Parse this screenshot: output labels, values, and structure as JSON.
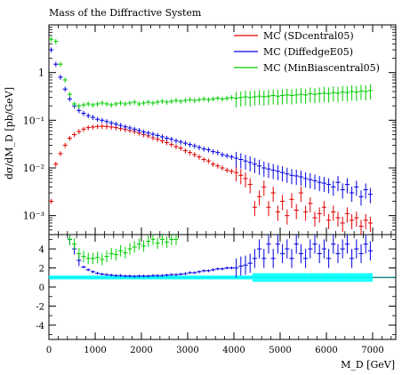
{
  "chart_data": [
    {
      "type": "scatter",
      "title": "Mass of the Diffractive System",
      "ylabel": "dσ/dM_D [pb/GeV]",
      "yscale": "log",
      "ylim": [
        0.0004,
        10
      ],
      "xlim": [
        0,
        7500
      ],
      "legend_position": "top-right",
      "y_ticks": [
        {
          "v": 0.001,
          "label": "10⁻³"
        },
        {
          "v": 0.01,
          "label": "10⁻²"
        },
        {
          "v": 0.1,
          "label": "10⁻¹"
        },
        {
          "v": 1,
          "label": "1"
        }
      ],
      "series": [
        {
          "name": "MC (SDcentral05)",
          "color": "#e00000",
          "x": [
            50,
            150,
            250,
            350,
            450,
            550,
            650,
            750,
            850,
            950,
            1050,
            1150,
            1250,
            1350,
            1450,
            1550,
            1650,
            1750,
            1850,
            1950,
            2050,
            2150,
            2250,
            2350,
            2450,
            2550,
            2650,
            2750,
            2850,
            2950,
            3050,
            3150,
            3250,
            3350,
            3450,
            3550,
            3650,
            3750,
            3850,
            3950,
            4050,
            4150,
            4250,
            4350,
            4450,
            4550,
            4650,
            4750,
            4850,
            4950,
            5050,
            5150,
            5250,
            5350,
            5450,
            5550,
            5650,
            5750,
            5850,
            5950,
            6050,
            6150,
            6250,
            6350,
            6450,
            6550,
            6650,
            6750,
            6850,
            6950
          ],
          "y": [
            0.002,
            0.012,
            0.02,
            0.03,
            0.042,
            0.05,
            0.058,
            0.065,
            0.07,
            0.072,
            0.074,
            0.075,
            0.074,
            0.072,
            0.07,
            0.067,
            0.064,
            0.061,
            0.058,
            0.054,
            0.05,
            0.047,
            0.043,
            0.04,
            0.037,
            0.034,
            0.031,
            0.028,
            0.026,
            0.023,
            0.021,
            0.019,
            0.017,
            0.015,
            0.014,
            0.012,
            0.011,
            0.01,
            0.009,
            0.0085,
            0.008,
            0.007,
            0.006,
            0.0045,
            0.0015,
            0.0025,
            0.004,
            0.0015,
            0.003,
            0.0012,
            0.002,
            0.001,
            0.0022,
            0.0013,
            0.003,
            0.0012,
            0.0018,
            0.0009,
            0.0011,
            0.0015,
            0.0008,
            0.0012,
            0.0009,
            0.0007,
            0.0011,
            0.0008,
            0.0009,
            0.0006,
            0.0008,
            0.0007
          ]
        },
        {
          "name": "MC (DiffedgeE05)",
          "color": "#0000e0",
          "x": [
            50,
            150,
            250,
            350,
            450,
            550,
            650,
            750,
            850,
            950,
            1050,
            1150,
            1250,
            1350,
            1450,
            1550,
            1650,
            1750,
            1850,
            1950,
            2050,
            2150,
            2250,
            2350,
            2450,
            2550,
            2650,
            2750,
            2850,
            2950,
            3050,
            3150,
            3250,
            3350,
            3450,
            3550,
            3650,
            3750,
            3850,
            3950,
            4050,
            4150,
            4250,
            4350,
            4450,
            4550,
            4650,
            4750,
            4850,
            4950,
            5050,
            5150,
            5250,
            5350,
            5450,
            5550,
            5650,
            5750,
            5850,
            5950,
            6050,
            6150,
            6250,
            6350,
            6450,
            6550,
            6650,
            6750,
            6850,
            6950
          ],
          "y": [
            3.0,
            1.5,
            0.8,
            0.45,
            0.28,
            0.2,
            0.16,
            0.14,
            0.125,
            0.115,
            0.105,
            0.1,
            0.094,
            0.088,
            0.083,
            0.078,
            0.073,
            0.069,
            0.065,
            0.061,
            0.057,
            0.054,
            0.051,
            0.048,
            0.045,
            0.042,
            0.04,
            0.037,
            0.035,
            0.033,
            0.031,
            0.029,
            0.027,
            0.025,
            0.024,
            0.022,
            0.021,
            0.019,
            0.018,
            0.017,
            0.016,
            0.015,
            0.014,
            0.013,
            0.012,
            0.011,
            0.01,
            0.0095,
            0.009,
            0.0085,
            0.008,
            0.0075,
            0.007,
            0.0068,
            0.0065,
            0.006,
            0.0057,
            0.0054,
            0.005,
            0.0048,
            0.0045,
            0.004,
            0.005,
            0.0035,
            0.0045,
            0.003,
            0.004,
            0.0025,
            0.0035,
            0.0028
          ]
        },
        {
          "name": "MC (MinBiascentral05)",
          "color": "#00cc00",
          "x": [
            50,
            150,
            250,
            350,
            450,
            550,
            650,
            750,
            850,
            950,
            1050,
            1150,
            1250,
            1350,
            1450,
            1550,
            1650,
            1750,
            1850,
            1950,
            2050,
            2150,
            2250,
            2350,
            2450,
            2550,
            2650,
            2750,
            2850,
            2950,
            3050,
            3150,
            3250,
            3350,
            3450,
            3550,
            3650,
            3750,
            3850,
            3950,
            4050,
            4150,
            4250,
            4350,
            4450,
            4550,
            4650,
            4750,
            4850,
            4950,
            5050,
            5150,
            5250,
            5350,
            5450,
            5550,
            5650,
            5750,
            5850,
            5950,
            6050,
            6150,
            6250,
            6350,
            6450,
            6550,
            6650,
            6750,
            6850,
            6950
          ],
          "y": [
            5.0,
            4.5,
            1.5,
            0.7,
            0.35,
            0.22,
            0.2,
            0.21,
            0.22,
            0.21,
            0.22,
            0.23,
            0.22,
            0.21,
            0.22,
            0.23,
            0.22,
            0.23,
            0.24,
            0.22,
            0.23,
            0.24,
            0.23,
            0.24,
            0.25,
            0.24,
            0.25,
            0.26,
            0.25,
            0.26,
            0.27,
            0.26,
            0.27,
            0.28,
            0.27,
            0.28,
            0.29,
            0.28,
            0.29,
            0.3,
            0.29,
            0.3,
            0.31,
            0.3,
            0.31,
            0.32,
            0.31,
            0.32,
            0.33,
            0.32,
            0.33,
            0.34,
            0.33,
            0.34,
            0.35,
            0.34,
            0.36,
            0.35,
            0.36,
            0.37,
            0.36,
            0.38,
            0.37,
            0.39,
            0.38,
            0.4,
            0.39,
            0.41,
            0.4,
            0.42
          ]
        }
      ]
    },
    {
      "type": "scatter",
      "xlabel": "M_D [GeV]",
      "ylim": [
        -5.5,
        5.5
      ],
      "xlim": [
        0,
        7500
      ],
      "x_ticks": [
        0,
        1000,
        2000,
        3000,
        4000,
        5000,
        6000,
        7000
      ],
      "y_ticks": [
        -4,
        -2,
        0,
        2,
        4
      ],
      "reference_line": 1,
      "series": [
        {
          "color": "#00ffff",
          "x": [
            50,
            150,
            250,
            350,
            450,
            550,
            650,
            750,
            850,
            950,
            1050,
            1150,
            1250,
            1350,
            1450,
            1550,
            1650,
            1750,
            1850,
            1950,
            2050,
            2150,
            2250,
            2350,
            2450,
            2550,
            2650,
            2750,
            2850,
            2950,
            3050,
            3150,
            3250,
            3350,
            3450,
            3550,
            3650,
            3750,
            3850,
            3950,
            4050,
            4150,
            4250,
            4350,
            4450,
            4550,
            4650,
            4750,
            4850,
            4950,
            5050,
            5150,
            5250,
            5350,
            5450,
            5550,
            5650,
            5750,
            5850,
            5950,
            6050,
            6150,
            6250,
            6350,
            6450,
            6550,
            6650,
            6750,
            6850,
            6950
          ],
          "y": [
            1,
            1,
            1,
            1,
            1,
            1,
            1,
            1,
            1,
            1,
            1,
            1,
            1,
            1,
            1,
            1,
            1,
            1,
            1,
            1,
            1,
            1,
            1,
            1,
            1,
            1,
            1,
            1,
            1,
            1,
            1,
            1,
            1,
            1,
            1,
            1,
            1,
            1,
            1,
            1,
            1,
            1,
            1,
            1,
            1,
            1,
            1,
            1,
            1,
            1,
            1,
            1,
            1,
            1,
            1,
            1,
            1,
            1,
            1,
            1,
            1,
            1,
            1,
            1,
            1,
            1,
            1,
            1,
            1,
            1
          ]
        },
        {
          "color": "#0000e0",
          "x": [
            450,
            550,
            650,
            750,
            850,
            950,
            1050,
            1150,
            1250,
            1350,
            1450,
            1550,
            1650,
            1750,
            1850,
            1950,
            2050,
            2150,
            2250,
            2350,
            2450,
            2550,
            2650,
            2750,
            2850,
            2950,
            3050,
            3150,
            3250,
            3350,
            3450,
            3550,
            3650,
            3750,
            3850,
            3950,
            4050,
            4150,
            4250,
            4350,
            4450,
            4550,
            4650,
            4750,
            4850,
            4950,
            5050,
            5150,
            5250,
            5350,
            5450,
            5550,
            5650,
            5750,
            5850,
            5950,
            6050,
            6150,
            6250,
            6350,
            6450,
            6550,
            6650,
            6750,
            6850,
            6950
          ],
          "y": [
            5.0,
            4.0,
            2.8,
            2.1,
            1.8,
            1.6,
            1.45,
            1.35,
            1.3,
            1.25,
            1.2,
            1.2,
            1.15,
            1.15,
            1.12,
            1.15,
            1.15,
            1.15,
            1.2,
            1.2,
            1.2,
            1.25,
            1.3,
            1.3,
            1.35,
            1.4,
            1.5,
            1.5,
            1.6,
            1.7,
            1.7,
            1.8,
            1.9,
            1.9,
            2.0,
            2.0,
            2.0,
            2.2,
            2.3,
            2.5,
            3.0,
            4.0,
            3.0,
            4.5,
            3.0,
            4.5,
            3.5,
            4.0,
            3.0,
            4.5,
            3.5,
            3.0,
            4.0,
            4.5,
            3.5,
            4.0,
            3.0,
            4.5,
            3.5,
            4.0,
            4.5,
            3.0,
            4.0,
            3.5,
            4.5,
            3.8
          ]
        },
        {
          "color": "#00cc00",
          "x": [
            450,
            550,
            650,
            750,
            850,
            950,
            1050,
            1150,
            1250,
            1350,
            1450,
            1550,
            1650,
            1750,
            1850,
            1950,
            2050,
            2150,
            2250,
            2350,
            2450,
            2550,
            2650,
            2750
          ],
          "y": [
            5.0,
            4.5,
            3.5,
            3.2,
            3.0,
            3.0,
            3.1,
            2.9,
            3.2,
            3.5,
            3.4,
            3.8,
            3.6,
            4.0,
            4.2,
            4.5,
            4.3,
            4.8,
            5.0,
            4.6,
            5.0,
            4.7,
            5.0,
            5.0
          ]
        }
      ]
    }
  ]
}
